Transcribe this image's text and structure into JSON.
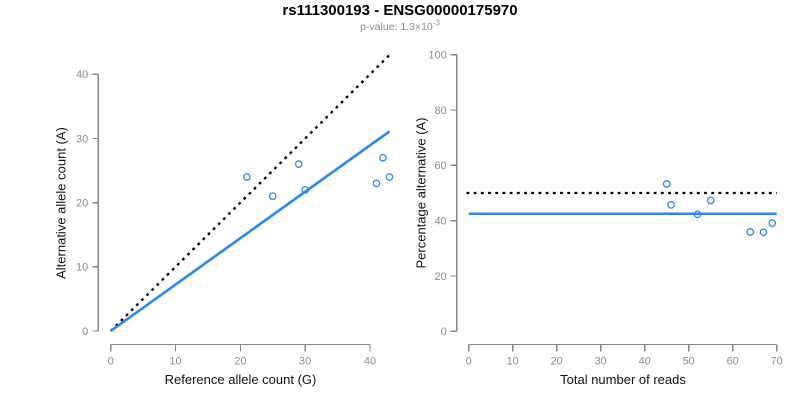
{
  "header": {
    "title": "rs111300193 - ENSG00000175970",
    "subtitle_prefix": "p-value: 1.3×10",
    "subtitle_exponent": "-3"
  },
  "colors": {
    "accent_blue": "#2d87eb",
    "line_black": "#000000",
    "axis_gray": "#858585",
    "tick_label_gray": "#8c8c8c"
  },
  "chart_data": [
    {
      "type": "scatter",
      "xlabel": "Reference allele count (G)",
      "ylabel": "Alternative allele count (A)",
      "xticks": [
        0,
        10,
        20,
        30,
        40
      ],
      "yticks": [
        0,
        10,
        20,
        30,
        40
      ],
      "xlim": [
        0,
        43
      ],
      "ylim": [
        0,
        43
      ],
      "grid": false,
      "points": [
        [
          21,
          24
        ],
        [
          25,
          21
        ],
        [
          29,
          26
        ],
        [
          30,
          22
        ],
        [
          41,
          23
        ],
        [
          42,
          27
        ],
        [
          43,
          24
        ]
      ],
      "lines": [
        {
          "name": "identity-line",
          "style": "dotted",
          "color": "#000000",
          "x0": 0,
          "y0": 0,
          "x1": 43,
          "y1": 43
        },
        {
          "name": "fit-line",
          "style": "solid",
          "color": "#2d87eb",
          "x0": 0,
          "y0": 0,
          "x1": 43,
          "y1": 31.1
        }
      ]
    },
    {
      "type": "scatter",
      "xlabel": "Total number of reads",
      "ylabel": "Percentage alternative (A)",
      "xticks": [
        0,
        10,
        20,
        30,
        40,
        50,
        60,
        70
      ],
      "yticks": [
        0,
        20,
        40,
        60,
        80,
        100
      ],
      "xlim": [
        0,
        70
      ],
      "ylim": [
        0,
        100
      ],
      "grid": false,
      "points": [
        [
          45,
          53.3
        ],
        [
          46,
          45.7
        ],
        [
          52,
          42.3
        ],
        [
          55,
          47.3
        ],
        [
          64,
          35.9
        ],
        [
          67,
          35.8
        ],
        [
          69,
          39.1
        ]
      ],
      "lines": [
        {
          "name": "expected-percentage-line",
          "style": "dotted",
          "color": "#000000",
          "x0": -0.5,
          "y0": 50,
          "x1": 70,
          "y1": 50
        },
        {
          "name": "mean-percentage-line",
          "style": "solid",
          "color": "#2d87eb",
          "x0": 0,
          "y0": 42.5,
          "x1": 70,
          "y1": 42.5
        }
      ]
    }
  ]
}
